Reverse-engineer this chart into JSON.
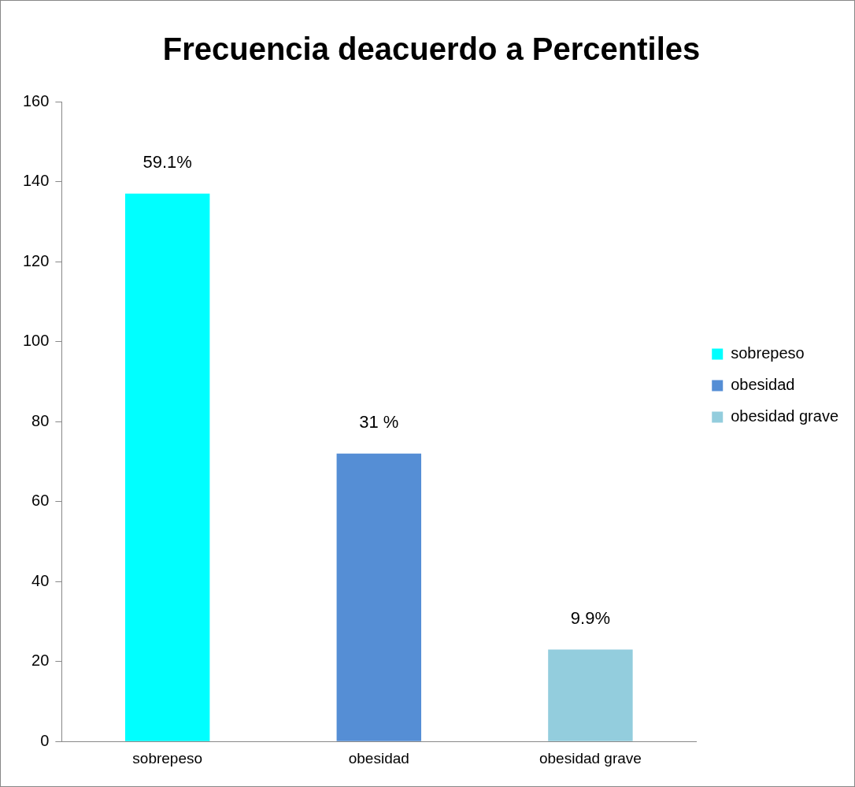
{
  "chart_data": {
    "type": "bar",
    "title": "Frecuencia deacuerdo a Percentiles",
    "categories": [
      "sobrepeso",
      "obesidad",
      "obesidad grave"
    ],
    "series": [
      {
        "name": "sobrepeso",
        "color": "#00ffff",
        "values": [
          137,
          null,
          null
        ]
      },
      {
        "name": "obesidad",
        "color": "#558ed5",
        "values": [
          null,
          72,
          null
        ]
      },
      {
        "name": "obesidad grave",
        "color": "#93cddd",
        "values": [
          null,
          null,
          23
        ]
      }
    ],
    "annotations": [
      {
        "text": "59.1%",
        "x": "sobrepeso",
        "y": 137
      },
      {
        "text": "31 %",
        "x": "obesidad",
        "y": 72
      },
      {
        "text": "9.9%",
        "x": "obesidad grave",
        "y": 23
      }
    ],
    "ylim": [
      0,
      160
    ],
    "yticks": [
      0,
      20,
      40,
      60,
      80,
      100,
      120,
      140,
      160
    ],
    "grid": false,
    "legend": "right"
  }
}
